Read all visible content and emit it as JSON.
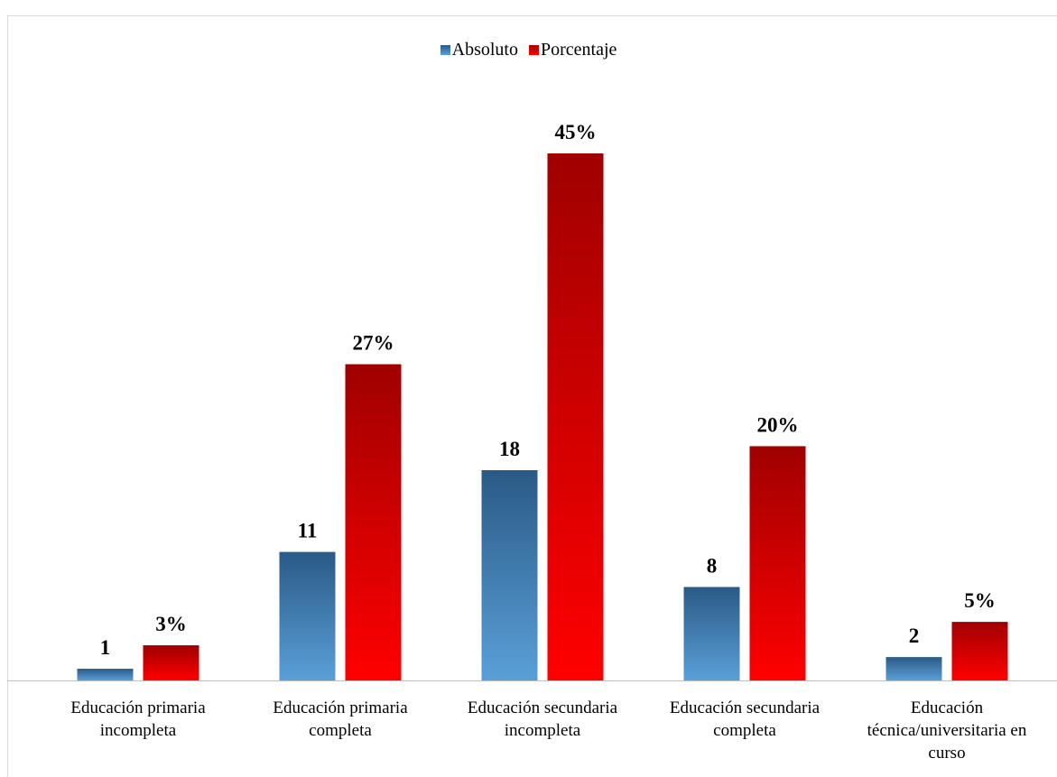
{
  "chart_data": {
    "type": "bar",
    "title": "",
    "xlabel": "",
    "ylabel": "",
    "categories": [
      [
        "Educación primaria",
        "incompleta"
      ],
      [
        "Educación primaria",
        "completa"
      ],
      [
        "Educación secundaria",
        "incompleta"
      ],
      [
        "Educación secundaria",
        "completa"
      ],
      [
        "Educación",
        "técnica/universitaria en",
        "curso"
      ]
    ],
    "series": [
      {
        "name": "Absoluto",
        "values": [
          1,
          11,
          18,
          8,
          2
        ],
        "labels": [
          "1",
          "11",
          "18",
          "8",
          "2"
        ],
        "color": "#2f5f8f"
      },
      {
        "name": "Porcentaje",
        "values": [
          3,
          27,
          45,
          20,
          5
        ],
        "labels": [
          "3%",
          "27%",
          "45%",
          "20%",
          "5%"
        ],
        "color": "#c00000"
      }
    ],
    "ylim": [
      0,
      45
    ],
    "grid": false,
    "legend": "top-center"
  }
}
